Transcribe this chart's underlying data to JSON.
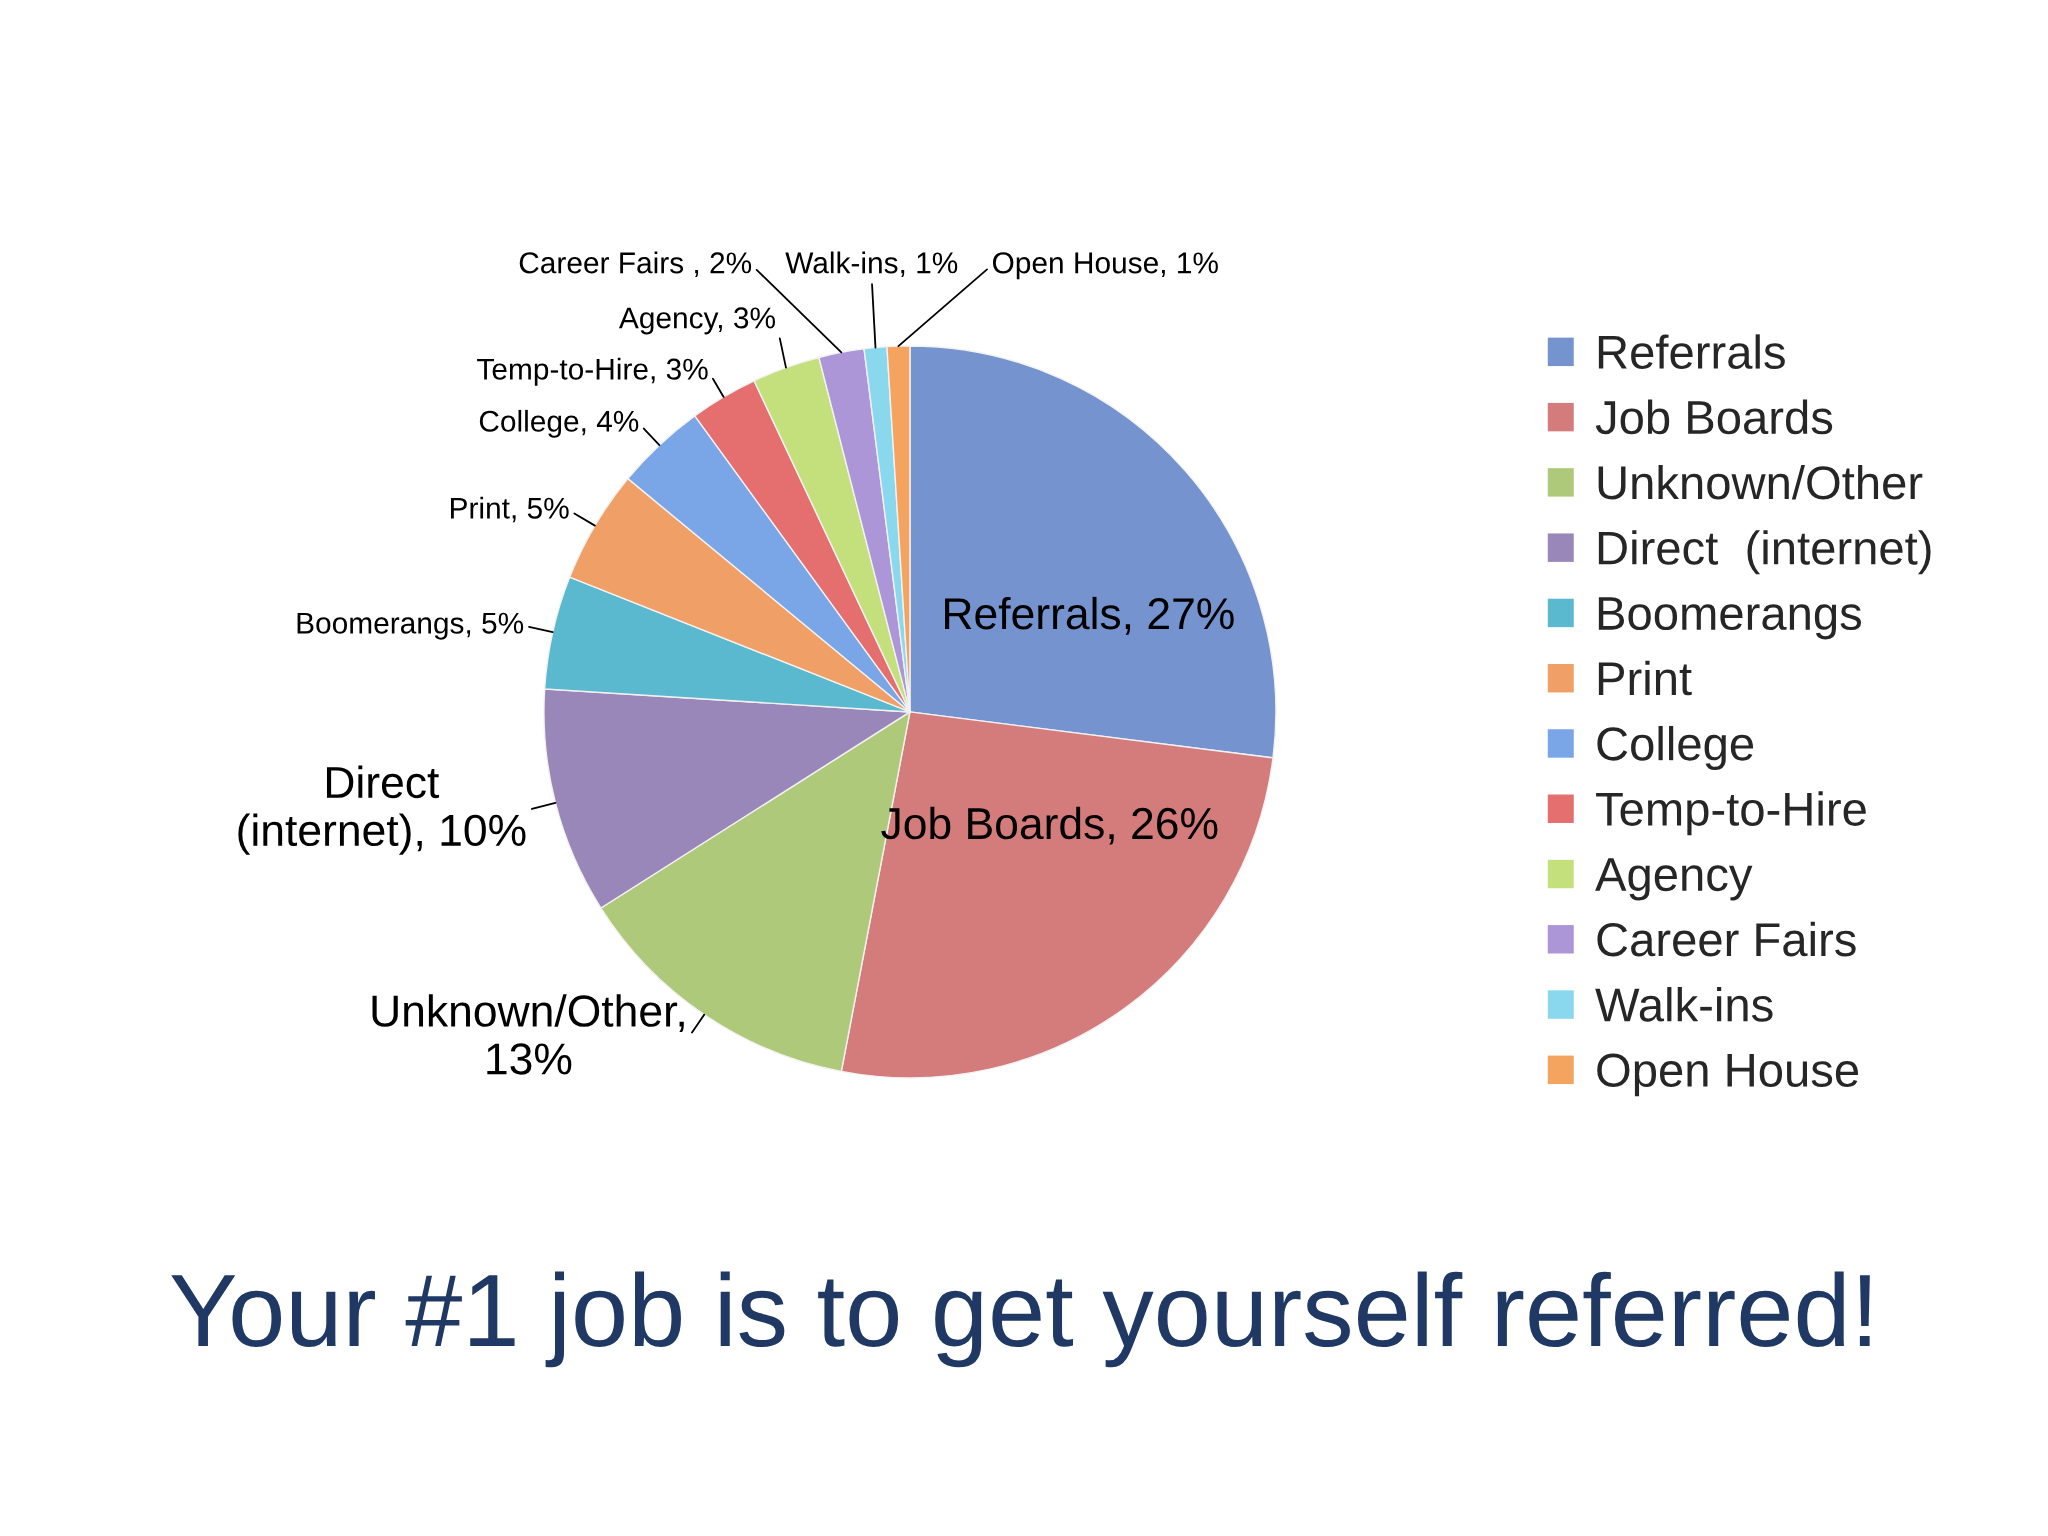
{
  "chart_data": {
    "type": "pie",
    "title": "Your #1 job is to get yourself referred!",
    "categories": [
      "Referrals",
      "Job Boards",
      "Unknown/Other",
      "Direct  (internet)",
      "Boomerangs",
      "Print",
      "College",
      "Temp-to-Hire",
      "Agency",
      "Career Fairs",
      "Walk-ins",
      "Open House"
    ],
    "values": [
      27,
      26,
      13,
      10,
      5,
      5,
      4,
      3,
      3,
      2,
      1,
      1
    ],
    "value_labels": [
      "Referrals, 27%",
      "Job Boards, 26%",
      "Unknown/Other, 13%",
      "Direct (internet), 10%",
      "Boomerangs, 5%",
      "Print, 5%",
      "College, 4%",
      "Temp-to-Hire, 3%",
      "Agency, 3%",
      "Career Fairs , 2%",
      "Walk-ins, 1%",
      "Open House, 1%"
    ],
    "colors": [
      "#7594cf",
      "#d47c7c",
      "#afc97a",
      "#9a87b9",
      "#5ab8cf",
      "#f0a066",
      "#7aa5e6",
      "#e56e6e",
      "#c4e07c",
      "#ad96d8",
      "#8ad8ee",
      "#f4a45f"
    ],
    "legend": "right"
  }
}
